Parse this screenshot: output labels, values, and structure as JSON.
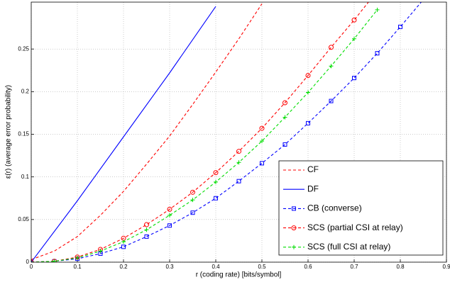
{
  "chart_data": {
    "type": "line",
    "xlabel": "r (coding rate) [bits/symbol]",
    "ylabel": "ε(r) (average error probability)",
    "xlim": [
      0,
      0.9
    ],
    "ylim": [
      0,
      0.305
    ],
    "xticks": [
      0,
      0.1,
      0.2,
      0.3,
      0.4,
      0.5,
      0.6,
      0.7,
      0.8,
      0.9
    ],
    "yticks": [
      0,
      0.05,
      0.1,
      0.15,
      0.2,
      0.25
    ],
    "grid": true,
    "legend": "lower right",
    "series": [
      {
        "name": "CF",
        "color": "#ff0000",
        "style": "dashed",
        "marker": null,
        "x": [
          0,
          0.05,
          0.1,
          0.15,
          0.2,
          0.25,
          0.3,
          0.35,
          0.4,
          0.45,
          0.5
        ],
        "values": [
          0.003,
          0.013,
          0.03,
          0.055,
          0.083,
          0.115,
          0.148,
          0.185,
          0.223,
          0.262,
          0.303
        ]
      },
      {
        "name": "DF",
        "color": "#0000ff",
        "style": "solid",
        "marker": null,
        "x": [
          0,
          0.1,
          0.2,
          0.3,
          0.4
        ],
        "values": [
          0,
          0.072,
          0.147,
          0.222,
          0.3
        ]
      },
      {
        "name": "CB (converse)",
        "color": "#0000ff",
        "style": "dashed",
        "marker": "square",
        "x": [
          0,
          0.05,
          0.1,
          0.15,
          0.2,
          0.25,
          0.3,
          0.35,
          0.4,
          0.45,
          0.5,
          0.55,
          0.6,
          0.65,
          0.7,
          0.75,
          0.8,
          0.85
        ],
        "values": [
          0,
          0.001,
          0.004,
          0.01,
          0.018,
          0.03,
          0.043,
          0.058,
          0.075,
          0.095,
          0.116,
          0.138,
          0.163,
          0.189,
          0.216,
          0.245,
          0.276,
          0.308
        ]
      },
      {
        "name": "SCS (partial CSI at relay)",
        "color": "#ff0000",
        "style": "dashed",
        "marker": "circle",
        "x": [
          0,
          0.05,
          0.1,
          0.15,
          0.2,
          0.25,
          0.3,
          0.35,
          0.4,
          0.45,
          0.5,
          0.55,
          0.6,
          0.65,
          0.7,
          0.75
        ],
        "values": [
          0,
          0.001,
          0.006,
          0.015,
          0.028,
          0.044,
          0.062,
          0.082,
          0.105,
          0.13,
          0.157,
          0.187,
          0.219,
          0.252,
          0.284,
          0.318
        ]
      },
      {
        "name": "SCS (full CSI at relay)",
        "color": "#00dd00",
        "style": "dashed",
        "marker": "plus",
        "x": [
          0,
          0.05,
          0.1,
          0.15,
          0.2,
          0.25,
          0.3,
          0.35,
          0.4,
          0.45,
          0.5,
          0.55,
          0.6,
          0.65,
          0.7,
          0.75
        ],
        "values": [
          0,
          0.001,
          0.005,
          0.013,
          0.024,
          0.038,
          0.055,
          0.073,
          0.094,
          0.117,
          0.142,
          0.17,
          0.199,
          0.23,
          0.262,
          0.296
        ]
      }
    ]
  }
}
